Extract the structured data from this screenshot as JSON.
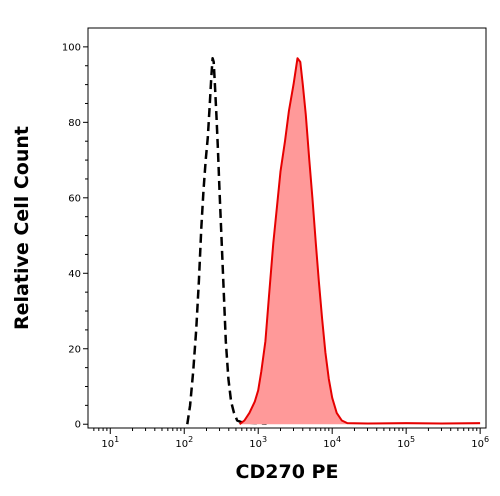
{
  "chart_data": {
    "type": "area",
    "xlabel": "CD270 PE",
    "ylabel": "Relative Cell Count",
    "x_scale": "log",
    "xlim": [
      5,
      1200000
    ],
    "ylim": [
      -1,
      105
    ],
    "x_ticks": [
      {
        "value": 10,
        "base": "10",
        "exp": "1"
      },
      {
        "value": 100,
        "base": "10",
        "exp": "2"
      },
      {
        "value": 1000,
        "base": "10",
        "exp": "3"
      },
      {
        "value": 10000,
        "base": "10",
        "exp": "4"
      },
      {
        "value": 100000,
        "base": "10",
        "exp": "5"
      },
      {
        "value": 1000000,
        "base": "10",
        "exp": "6"
      }
    ],
    "y_ticks": [
      0,
      20,
      40,
      60,
      80,
      100
    ],
    "grid": false,
    "series": [
      {
        "style": "dashed",
        "color": "#000000",
        "points": [
          [
            110,
            0
          ],
          [
            120,
            5
          ],
          [
            132,
            14
          ],
          [
            145,
            25
          ],
          [
            158,
            38
          ],
          [
            170,
            52
          ],
          [
            182,
            62
          ],
          [
            195,
            70
          ],
          [
            208,
            76
          ],
          [
            220,
            84
          ],
          [
            232,
            92
          ],
          [
            242,
            97
          ],
          [
            250,
            96
          ],
          [
            260,
            90
          ],
          [
            272,
            82
          ],
          [
            285,
            73
          ],
          [
            300,
            62
          ],
          [
            318,
            50
          ],
          [
            340,
            36
          ],
          [
            365,
            22
          ],
          [
            395,
            12
          ],
          [
            430,
            6
          ],
          [
            470,
            3
          ],
          [
            520,
            1
          ],
          [
            600,
            0.5
          ],
          [
            900,
            0.3
          ],
          [
            1300,
            0.2
          ]
        ]
      },
      {
        "style": "filled",
        "color": "#e60000",
        "fill": "#ff9999",
        "points": [
          [
            560,
            0
          ],
          [
            650,
            1
          ],
          [
            760,
            3
          ],
          [
            900,
            6
          ],
          [
            1000,
            9
          ],
          [
            1100,
            14
          ],
          [
            1250,
            22
          ],
          [
            1400,
            34
          ],
          [
            1600,
            48
          ],
          [
            1800,
            58
          ],
          [
            2000,
            67
          ],
          [
            2300,
            75
          ],
          [
            2600,
            83
          ],
          [
            3000,
            90
          ],
          [
            3400,
            97
          ],
          [
            3700,
            96
          ],
          [
            4000,
            90
          ],
          [
            4400,
            82
          ],
          [
            4900,
            70
          ],
          [
            5400,
            60
          ],
          [
            6000,
            48
          ],
          [
            6600,
            38
          ],
          [
            7300,
            28
          ],
          [
            8100,
            19
          ],
          [
            9000,
            12
          ],
          [
            10000,
            7
          ],
          [
            11500,
            3
          ],
          [
            13500,
            1
          ],
          [
            16000,
            0.3
          ],
          [
            30000,
            0.2
          ],
          [
            100000,
            0.3
          ],
          [
            300000,
            0.2
          ],
          [
            1000000,
            0.3
          ]
        ]
      }
    ]
  }
}
